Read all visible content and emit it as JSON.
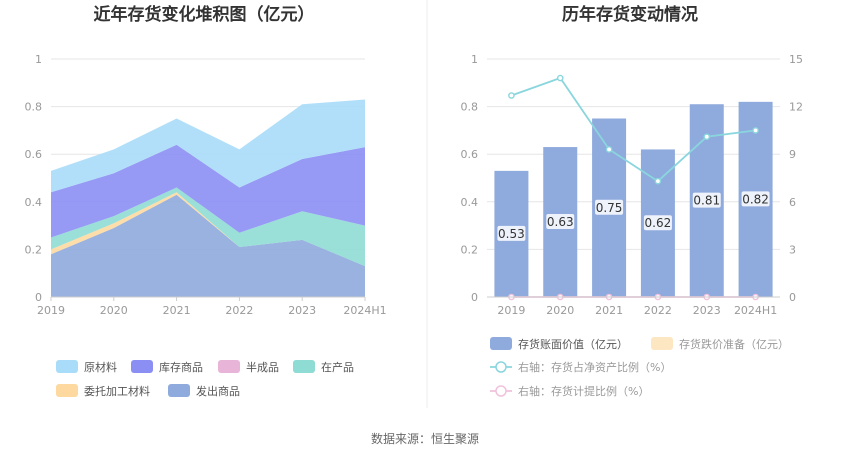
{
  "source": "数据来源：恒生聚源",
  "chart_data": [
    {
      "type": "area",
      "title": "近年存货变化堆积图（亿元）",
      "x": [
        "2019",
        "2020",
        "2021",
        "2022",
        "2023",
        "2024H1"
      ],
      "ylim": [
        0,
        1
      ],
      "yticks": [
        "0",
        "0.2",
        "0.4",
        "0.6",
        "0.8",
        "1"
      ],
      "stacked": true,
      "grid": true,
      "legend_position": "bottom",
      "series": [
        {
          "name": "发出商品",
          "color": "#8faadc",
          "values": [
            0.18,
            0.29,
            0.43,
            0.21,
            0.24,
            0.13
          ]
        },
        {
          "name": "委托加工材料",
          "color": "#fdd9a0",
          "values": [
            0.02,
            0.02,
            0.01,
            0.0,
            0.0,
            0.0
          ]
        },
        {
          "name": "在产品",
          "color": "#8fdcd4",
          "values": [
            0.05,
            0.03,
            0.02,
            0.06,
            0.12,
            0.17
          ]
        },
        {
          "name": "半成品",
          "color": "#e8b4d8",
          "values": [
            0.0,
            0.0,
            0.0,
            0.0,
            0.0,
            0.0
          ]
        },
        {
          "name": "库存商品",
          "color": "#8b8ff4",
          "values": [
            0.19,
            0.18,
            0.18,
            0.19,
            0.22,
            0.33
          ]
        },
        {
          "name": "原材料",
          "color": "#a8dcf8",
          "values": [
            0.09,
            0.1,
            0.11,
            0.16,
            0.23,
            0.2
          ]
        }
      ],
      "legend_order": [
        "原材料",
        "库存商品",
        "半成品",
        "在产品",
        "委托加工材料",
        "发出商品"
      ]
    },
    {
      "type": "bar",
      "title": "历年存货变动情况",
      "categories": [
        "2019",
        "2020",
        "2021",
        "2022",
        "2023",
        "2024H1"
      ],
      "ylim": [
        0,
        1
      ],
      "yticks": [
        "0",
        "0.2",
        "0.4",
        "0.6",
        "0.8",
        "1"
      ],
      "y2lim": [
        0,
        15
      ],
      "y2ticks": [
        "0",
        "3",
        "6",
        "9",
        "12",
        "15"
      ],
      "grid": true,
      "legend_position": "bottom",
      "series": [
        {
          "name": "存货账面价值（亿元）",
          "type": "bar",
          "axis": "left",
          "color": "#8faadc",
          "values": [
            0.53,
            0.63,
            0.75,
            0.62,
            0.81,
            0.82
          ],
          "labels": [
            "0.53",
            "0.63",
            "0.75",
            "0.62",
            "0.81",
            "0.82"
          ]
        },
        {
          "name": "存货跌价准备（亿元）",
          "type": "bar",
          "axis": "left",
          "color": "#fde6c2",
          "values": [
            0,
            0,
            0,
            0,
            0,
            0
          ]
        },
        {
          "name": "右轴：存货占净资产比例（%）",
          "type": "line",
          "axis": "right",
          "color": "#8ad6de",
          "values": [
            12.7,
            13.8,
            9.3,
            7.3,
            10.1,
            10.5
          ]
        },
        {
          "name": "右轴：存货计提比例（%）",
          "type": "line",
          "axis": "right",
          "color": "#f0c2dc",
          "values": [
            0,
            0,
            0,
            0,
            0,
            0
          ]
        }
      ]
    }
  ]
}
